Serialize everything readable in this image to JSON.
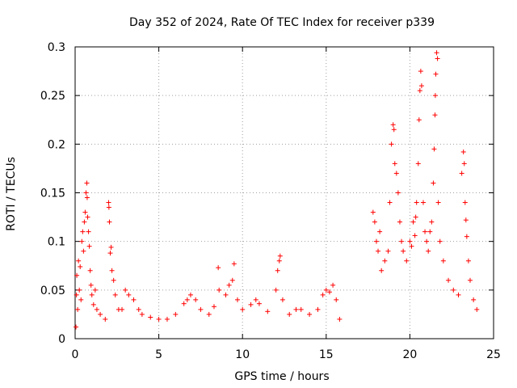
{
  "chart_data": {
    "type": "scatter",
    "title": "Day 352 of 2024, Rate Of TEC Index for receiver p339",
    "xlabel": "GPS time / hours",
    "ylabel": "ROTI / TECUs",
    "xlim": [
      0,
      25
    ],
    "ylim": [
      0,
      0.3
    ],
    "x_ticks": [
      "0",
      "5",
      "10",
      "15",
      "20",
      "25"
    ],
    "y_ticks": [
      "0",
      "0.05",
      "0.1",
      "0.15",
      "0.2",
      "0.25",
      "0.3"
    ],
    "grid": true,
    "marker": "+",
    "color": "#ff0000",
    "series": [
      {
        "points": [
          [
            0.05,
            0.012
          ],
          [
            0.08,
            0.045
          ],
          [
            0.1,
            0.065
          ],
          [
            0.15,
            0.03
          ],
          [
            0.2,
            0.08
          ],
          [
            0.25,
            0.05
          ],
          [
            0.3,
            0.074
          ],
          [
            0.35,
            0.04
          ],
          [
            0.4,
            0.1
          ],
          [
            0.45,
            0.11
          ],
          [
            0.5,
            0.09
          ],
          [
            0.55,
            0.12
          ],
          [
            0.6,
            0.13
          ],
          [
            0.65,
            0.15
          ],
          [
            0.7,
            0.16
          ],
          [
            0.72,
            0.145
          ],
          [
            0.75,
            0.125
          ],
          [
            0.8,
            0.11
          ],
          [
            0.85,
            0.095
          ],
          [
            0.9,
            0.07
          ],
          [
            0.95,
            0.055
          ],
          [
            1.0,
            0.045
          ],
          [
            1.1,
            0.035
          ],
          [
            1.2,
            0.05
          ],
          [
            1.3,
            0.03
          ],
          [
            1.5,
            0.025
          ],
          [
            1.8,
            0.02
          ],
          [
            2.0,
            0.14
          ],
          [
            2.02,
            0.135
          ],
          [
            2.05,
            0.12
          ],
          [
            2.1,
            0.088
          ],
          [
            2.15,
            0.094
          ],
          [
            2.2,
            0.07
          ],
          [
            2.3,
            0.06
          ],
          [
            2.4,
            0.045
          ],
          [
            2.6,
            0.03
          ],
          [
            2.8,
            0.03
          ],
          [
            3.0,
            0.05
          ],
          [
            3.2,
            0.045
          ],
          [
            3.5,
            0.04
          ],
          [
            3.8,
            0.03
          ],
          [
            4.0,
            0.025
          ],
          [
            4.5,
            0.022
          ],
          [
            5.0,
            0.02
          ],
          [
            5.5,
            0.02
          ],
          [
            6.0,
            0.025
          ],
          [
            6.5,
            0.036
          ],
          [
            6.7,
            0.04
          ],
          [
            6.9,
            0.045
          ],
          [
            7.2,
            0.04
          ],
          [
            7.5,
            0.03
          ],
          [
            8.0,
            0.025
          ],
          [
            8.3,
            0.033
          ],
          [
            8.55,
            0.073
          ],
          [
            8.6,
            0.05
          ],
          [
            9.0,
            0.045
          ],
          [
            9.2,
            0.055
          ],
          [
            9.4,
            0.06
          ],
          [
            9.5,
            0.077
          ],
          [
            9.7,
            0.04
          ],
          [
            10.0,
            0.03
          ],
          [
            10.5,
            0.035
          ],
          [
            10.8,
            0.04
          ],
          [
            11.0,
            0.036
          ],
          [
            11.5,
            0.028
          ],
          [
            12.0,
            0.05
          ],
          [
            12.1,
            0.07
          ],
          [
            12.2,
            0.08
          ],
          [
            12.25,
            0.085
          ],
          [
            12.4,
            0.04
          ],
          [
            12.8,
            0.025
          ],
          [
            13.2,
            0.03
          ],
          [
            13.5,
            0.03
          ],
          [
            14.0,
            0.025
          ],
          [
            14.5,
            0.03
          ],
          [
            14.8,
            0.045
          ],
          [
            15.0,
            0.05
          ],
          [
            15.2,
            0.048
          ],
          [
            15.4,
            0.055
          ],
          [
            15.6,
            0.04
          ],
          [
            15.8,
            0.02
          ],
          [
            17.8,
            0.13
          ],
          [
            17.9,
            0.12
          ],
          [
            18.0,
            0.1
          ],
          [
            18.1,
            0.09
          ],
          [
            18.2,
            0.11
          ],
          [
            18.3,
            0.07
          ],
          [
            18.5,
            0.08
          ],
          [
            18.7,
            0.09
          ],
          [
            18.8,
            0.14
          ],
          [
            18.9,
            0.2
          ],
          [
            19.0,
            0.22
          ],
          [
            19.05,
            0.215
          ],
          [
            19.1,
            0.18
          ],
          [
            19.2,
            0.17
          ],
          [
            19.3,
            0.15
          ],
          [
            19.4,
            0.12
          ],
          [
            19.5,
            0.1
          ],
          [
            19.6,
            0.09
          ],
          [
            19.8,
            0.08
          ],
          [
            20.0,
            0.1
          ],
          [
            20.1,
            0.095
          ],
          [
            20.2,
            0.12
          ],
          [
            20.3,
            0.106
          ],
          [
            20.35,
            0.125
          ],
          [
            20.4,
            0.14
          ],
          [
            20.5,
            0.18
          ],
          [
            20.55,
            0.225
          ],
          [
            20.6,
            0.255
          ],
          [
            20.65,
            0.275
          ],
          [
            20.7,
            0.26
          ],
          [
            20.8,
            0.14
          ],
          [
            20.9,
            0.11
          ],
          [
            21.0,
            0.1
          ],
          [
            21.1,
            0.09
          ],
          [
            21.2,
            0.11
          ],
          [
            21.3,
            0.12
          ],
          [
            21.4,
            0.16
          ],
          [
            21.45,
            0.195
          ],
          [
            21.5,
            0.23
          ],
          [
            21.52,
            0.25
          ],
          [
            21.55,
            0.272
          ],
          [
            21.6,
            0.294
          ],
          [
            21.65,
            0.288
          ],
          [
            21.7,
            0.14
          ],
          [
            21.8,
            0.1
          ],
          [
            22.0,
            0.08
          ],
          [
            22.3,
            0.06
          ],
          [
            22.6,
            0.05
          ],
          [
            22.9,
            0.045
          ],
          [
            23.1,
            0.17
          ],
          [
            23.2,
            0.192
          ],
          [
            23.25,
            0.18
          ],
          [
            23.3,
            0.14
          ],
          [
            23.35,
            0.122
          ],
          [
            23.4,
            0.105
          ],
          [
            23.5,
            0.08
          ],
          [
            23.6,
            0.06
          ],
          [
            23.8,
            0.04
          ],
          [
            24.0,
            0.03
          ]
        ]
      }
    ]
  }
}
